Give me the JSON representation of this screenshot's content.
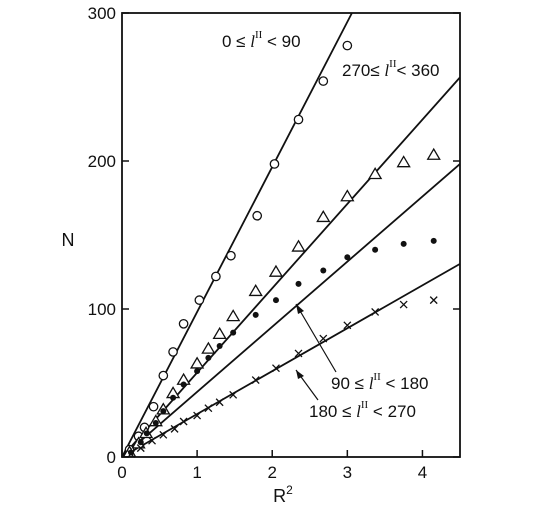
{
  "chart_data": {
    "type": "scatter",
    "title": "",
    "xlabel_base": "R",
    "xlabel_exp": "2",
    "ylabel": "N",
    "xlim": [
      0,
      4.5
    ],
    "ylim": [
      0,
      300
    ],
    "x_ticks": [
      0,
      1,
      2,
      3,
      4
    ],
    "y_ticks": [
      0,
      100,
      200,
      300
    ],
    "x_tick_labels": [
      "0",
      "1",
      "2",
      "3",
      "4"
    ],
    "y_tick_labels": [
      "0",
      "100",
      "200",
      "300"
    ],
    "grid": false,
    "series": [
      {
        "marker": "open-circle",
        "label": {
          "pre": "0 ≤ ",
          "l": "l",
          "sup": "II",
          "post": " < 90"
        },
        "fit_slope": 98,
        "points": [
          [
            0.1,
            5
          ],
          [
            0.22,
            14
          ],
          [
            0.3,
            20
          ],
          [
            0.42,
            34
          ],
          [
            0.55,
            55
          ],
          [
            0.68,
            71
          ],
          [
            0.82,
            90
          ],
          [
            1.03,
            106
          ],
          [
            1.25,
            122
          ],
          [
            1.45,
            136
          ],
          [
            1.8,
            163
          ],
          [
            2.03,
            198
          ],
          [
            2.35,
            228
          ],
          [
            2.68,
            254
          ],
          [
            3.0,
            278
          ]
        ]
      },
      {
        "marker": "open-triangle",
        "label": {
          "pre": "270≤ ",
          "l": "l",
          "sup": "II",
          "post": "< 360"
        },
        "fit_slope": 57,
        "points": [
          [
            0.1,
            3
          ],
          [
            0.22,
            9
          ],
          [
            0.32,
            16
          ],
          [
            0.45,
            24
          ],
          [
            0.55,
            32
          ],
          [
            0.68,
            43
          ],
          [
            0.82,
            52
          ],
          [
            1.0,
            63
          ],
          [
            1.15,
            73
          ],
          [
            1.3,
            83
          ],
          [
            1.48,
            95
          ],
          [
            1.78,
            112
          ],
          [
            2.05,
            125
          ],
          [
            2.35,
            142
          ],
          [
            2.68,
            162
          ],
          [
            3.0,
            176
          ],
          [
            3.37,
            191
          ],
          [
            3.75,
            199
          ],
          [
            4.15,
            204
          ]
        ]
      },
      {
        "marker": "filled-circle",
        "label": {
          "pre": "90 ≤ ",
          "l": "l",
          "sup": "II",
          "post": " < 180"
        },
        "fit_slope": 44,
        "points": [
          [
            0.12,
            3
          ],
          [
            0.25,
            10
          ],
          [
            0.33,
            16
          ],
          [
            0.45,
            23
          ],
          [
            0.55,
            31
          ],
          [
            0.68,
            40
          ],
          [
            0.82,
            49
          ],
          [
            1.0,
            58
          ],
          [
            1.15,
            67
          ],
          [
            1.3,
            75
          ],
          [
            1.48,
            84
          ],
          [
            1.78,
            96
          ],
          [
            2.05,
            106
          ],
          [
            2.35,
            117
          ],
          [
            2.68,
            126
          ],
          [
            3.0,
            135
          ],
          [
            3.37,
            140
          ],
          [
            3.75,
            144
          ],
          [
            4.15,
            146
          ]
        ]
      },
      {
        "marker": "cross",
        "label": {
          "pre": "180 ≤ ",
          "l": "l",
          "sup": "II",
          "post": " < 270"
        },
        "fit_slope": 29,
        "points": [
          [
            0.12,
            2
          ],
          [
            0.25,
            6
          ],
          [
            0.4,
            11
          ],
          [
            0.55,
            15
          ],
          [
            0.7,
            19
          ],
          [
            0.82,
            24
          ],
          [
            1.0,
            28
          ],
          [
            1.15,
            33
          ],
          [
            1.3,
            37
          ],
          [
            1.48,
            42
          ],
          [
            1.78,
            52
          ],
          [
            2.05,
            60
          ],
          [
            2.35,
            70
          ],
          [
            2.68,
            80
          ],
          [
            3.0,
            89
          ],
          [
            3.37,
            98
          ],
          [
            3.75,
            103
          ],
          [
            4.15,
            106
          ]
        ]
      }
    ]
  }
}
